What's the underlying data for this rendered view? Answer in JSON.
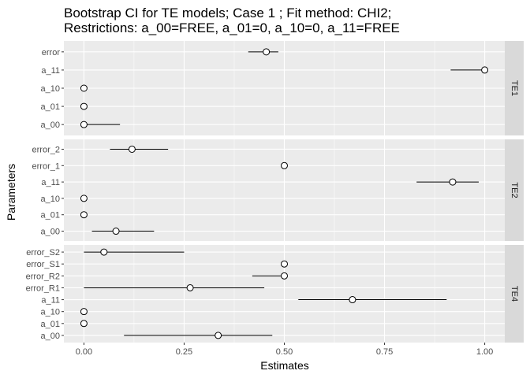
{
  "chart_data": {
    "type": "errorbar",
    "title": "Bootstrap CI for TE models; Case 1 ; Fit method: CHI2;",
    "subtitle": "Restrictions: a_00=FREE, a_01=0, a_10=0, a_11=FREE",
    "xlabel": "Estimates",
    "ylabel": "Parameters",
    "xlim": [
      -0.05,
      1.05
    ],
    "x_ticks": [
      0,
      0.25,
      0.5,
      0.75,
      1
    ],
    "x_tick_labels": [
      "0.00",
      "0.25",
      "0.50",
      "0.75",
      "1.00"
    ],
    "grid": true,
    "panels": [
      {
        "label": "TE1",
        "params": [
          {
            "name": "error",
            "estimate": 0.455,
            "lower": 0.41,
            "upper": 0.485
          },
          {
            "name": "a_11",
            "estimate": 1.0,
            "lower": 0.915,
            "upper": 1.0
          },
          {
            "name": "a_10",
            "estimate": 0.0,
            "lower": null,
            "upper": null
          },
          {
            "name": "a_01",
            "estimate": 0.0,
            "lower": null,
            "upper": null
          },
          {
            "name": "a_00",
            "estimate": 0.0,
            "lower": 0.0,
            "upper": 0.09
          }
        ]
      },
      {
        "label": "TE2",
        "params": [
          {
            "name": "error_2",
            "estimate": 0.12,
            "lower": 0.065,
            "upper": 0.21
          },
          {
            "name": "error_1",
            "estimate": 0.5,
            "lower": null,
            "upper": null
          },
          {
            "name": "a_11",
            "estimate": 0.92,
            "lower": 0.83,
            "upper": 0.985
          },
          {
            "name": "a_10",
            "estimate": 0.0,
            "lower": null,
            "upper": null
          },
          {
            "name": "a_01",
            "estimate": 0.0,
            "lower": null,
            "upper": null
          },
          {
            "name": "a_00",
            "estimate": 0.08,
            "lower": 0.02,
            "upper": 0.175
          }
        ]
      },
      {
        "label": "TE4",
        "params": [
          {
            "name": "error_S2",
            "estimate": 0.05,
            "lower": 0.0,
            "upper": 0.25
          },
          {
            "name": "error_S1",
            "estimate": 0.5,
            "lower": null,
            "upper": null
          },
          {
            "name": "error_R2",
            "estimate": 0.5,
            "lower": 0.42,
            "upper": 0.5
          },
          {
            "name": "error_R1",
            "estimate": 0.265,
            "lower": 0.0,
            "upper": 0.45
          },
          {
            "name": "a_11",
            "estimate": 0.67,
            "lower": 0.535,
            "upper": 0.905
          },
          {
            "name": "a_10",
            "estimate": 0.0,
            "lower": null,
            "upper": null
          },
          {
            "name": "a_01",
            "estimate": 0.0,
            "lower": null,
            "upper": null
          },
          {
            "name": "a_00",
            "estimate": 0.335,
            "lower": 0.1,
            "upper": 0.47
          }
        ]
      }
    ]
  }
}
